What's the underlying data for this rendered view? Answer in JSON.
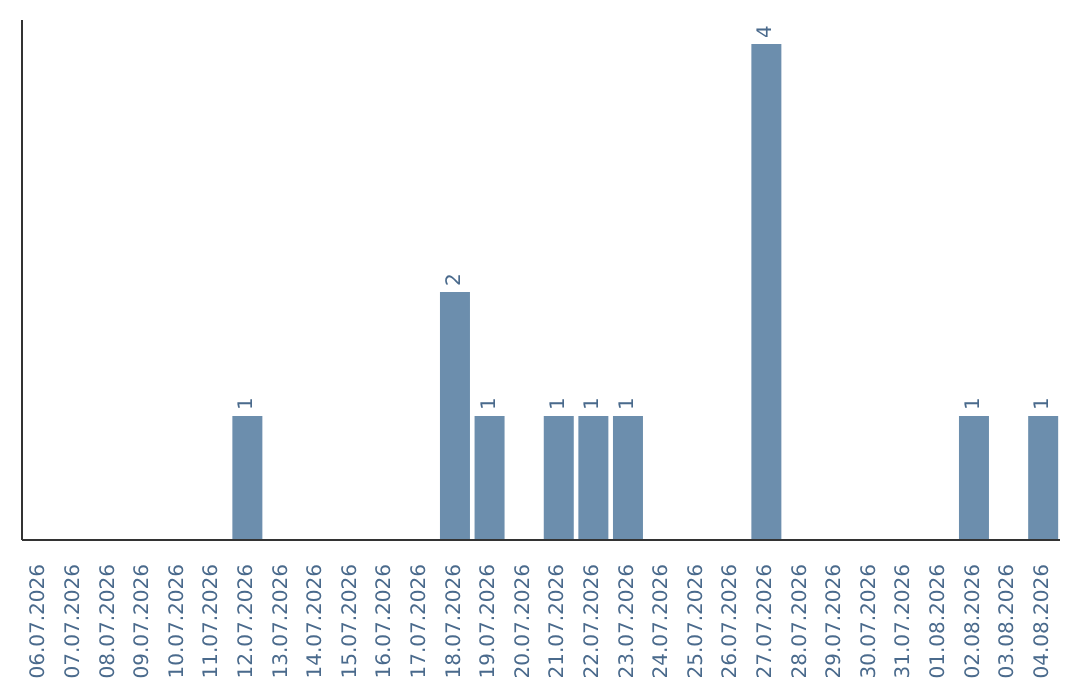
{
  "chart_data": {
    "type": "bar",
    "categories": [
      "06.07.2026",
      "07.07.2026",
      "08.07.2026",
      "09.07.2026",
      "10.07.2026",
      "11.07.2026",
      "12.07.2026",
      "13.07.2026",
      "14.07.2026",
      "15.07.2026",
      "16.07.2026",
      "17.07.2026",
      "18.07.2026",
      "19.07.2026",
      "20.07.2026",
      "21.07.2026",
      "22.07.2026",
      "23.07.2026",
      "24.07.2026",
      "25.07.2026",
      "26.07.2026",
      "27.07.2026",
      "28.07.2026",
      "29.07.2026",
      "30.07.2026",
      "31.07.2026",
      "01.08.2026",
      "02.08.2026",
      "03.08.2026",
      "04.08.2026"
    ],
    "values": [
      0,
      0,
      0,
      0,
      0,
      0,
      1,
      0,
      0,
      0,
      0,
      0,
      2,
      1,
      0,
      1,
      1,
      1,
      0,
      0,
      0,
      4,
      0,
      0,
      0,
      0,
      0,
      1,
      0,
      1
    ],
    "value_labels": [
      null,
      null,
      null,
      null,
      null,
      null,
      "1",
      null,
      null,
      null,
      null,
      null,
      "2",
      "1",
      null,
      "1",
      "1",
      "1",
      null,
      null,
      null,
      "4",
      null,
      null,
      null,
      null,
      null,
      "1",
      null,
      "1"
    ],
    "color": "#6c8ead",
    "tick_labels": "x"
  }
}
